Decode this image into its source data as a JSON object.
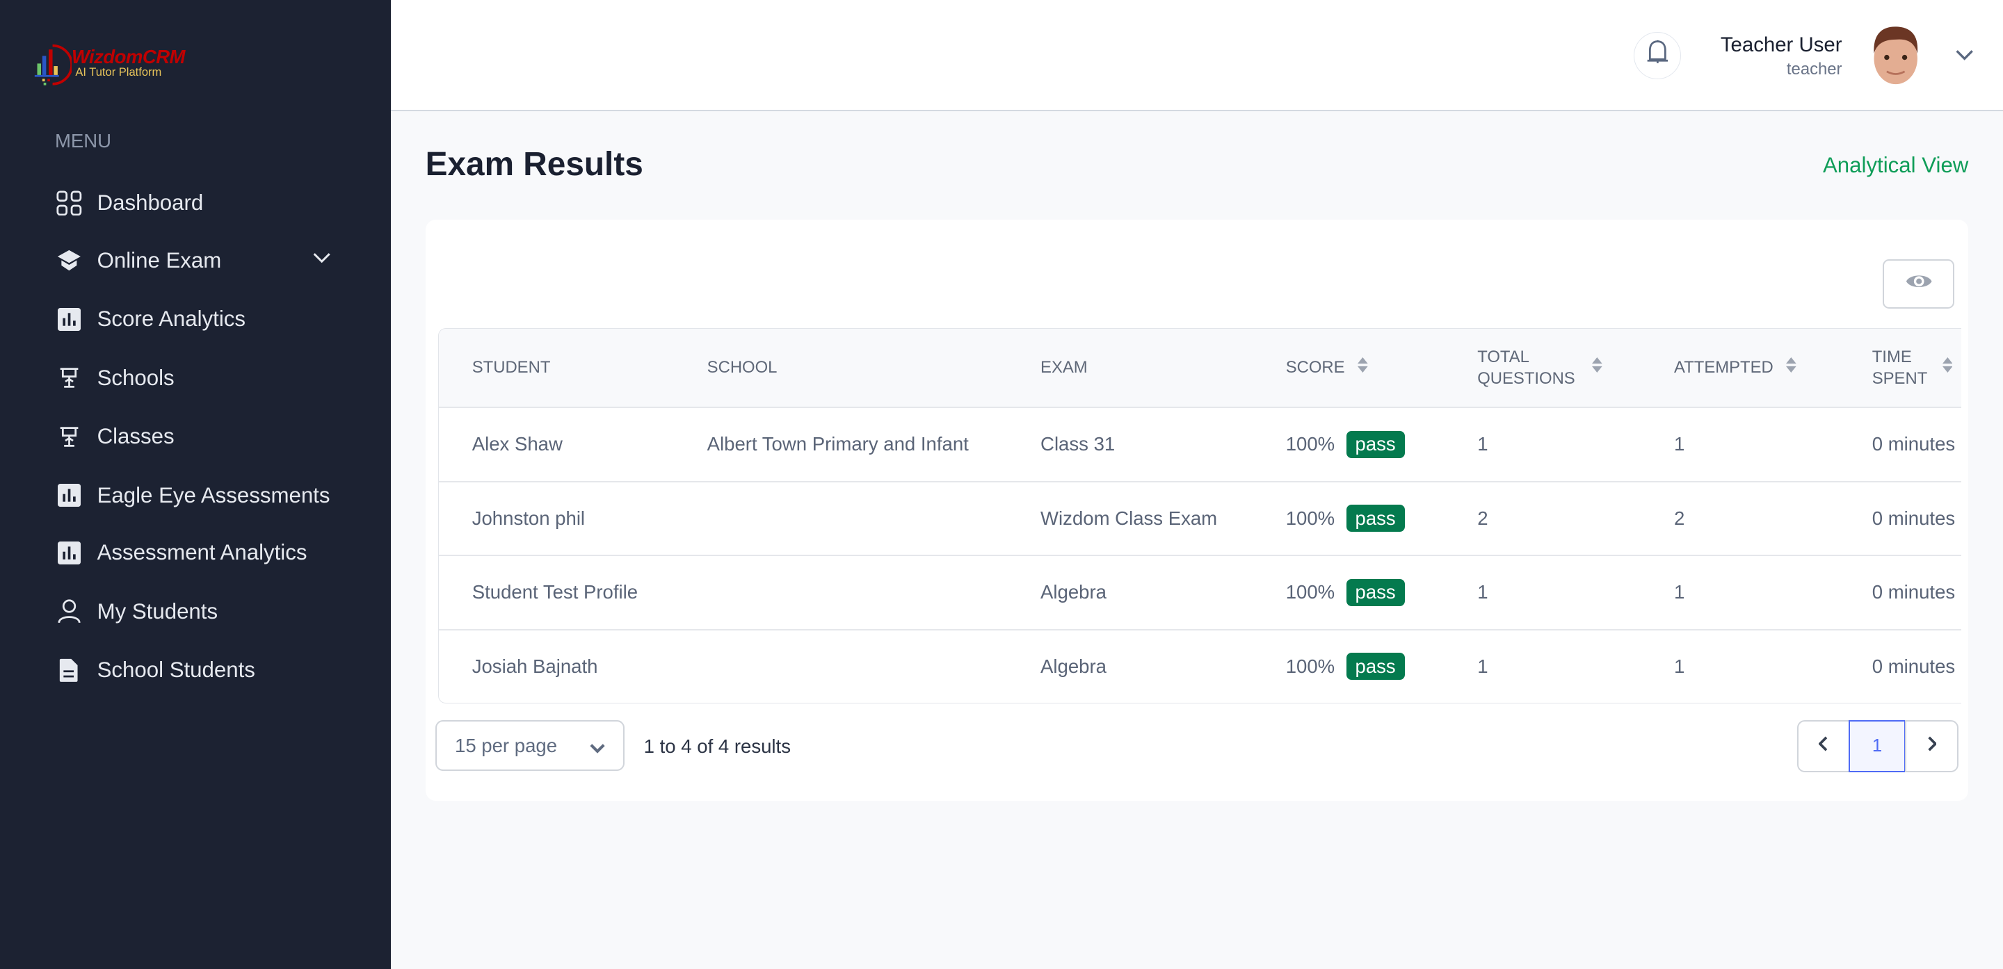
{
  "brand": {
    "name": "WizdomCRM",
    "tagline": "AI Tutor Platform"
  },
  "sidebar": {
    "menu_label": "MENU",
    "items": [
      {
        "label": "Dashboard",
        "icon": "grid-icon"
      },
      {
        "label": "Online Exam",
        "icon": "graduation-cap-icon",
        "expandable": true
      },
      {
        "label": "Score Analytics",
        "icon": "bar-chart-icon"
      },
      {
        "label": "Schools",
        "icon": "school-icon"
      },
      {
        "label": "Classes",
        "icon": "school-icon"
      },
      {
        "label": "Eagle Eye Assessments",
        "icon": "bar-chart-icon"
      },
      {
        "label": "Assessment Analytics",
        "icon": "bar-chart-icon"
      },
      {
        "label": "My Students",
        "icon": "user-icon"
      },
      {
        "label": "School Students",
        "icon": "document-icon"
      }
    ]
  },
  "header": {
    "user_name": "Teacher User",
    "user_role": "teacher"
  },
  "page": {
    "title": "Exam Results",
    "analytical_link": "Analytical View"
  },
  "table": {
    "columns": [
      {
        "label": "Student",
        "sortable": false
      },
      {
        "label": "School",
        "sortable": false
      },
      {
        "label": "Exam",
        "sortable": false
      },
      {
        "label": "Score",
        "sortable": true
      },
      {
        "label": "Total Questions",
        "sortable": true
      },
      {
        "label": "Attempted",
        "sortable": true
      },
      {
        "label": "Time Spent",
        "sortable": true
      }
    ],
    "rows": [
      {
        "student": "Alex Shaw",
        "school": "Albert Town Primary and Infant",
        "exam": "Class 31",
        "score": "100%",
        "status": "pass",
        "total": "1",
        "attempted": "1",
        "time": "0 minutes"
      },
      {
        "student": "Johnston phil",
        "school": "",
        "exam": "Wizdom Class Exam",
        "score": "100%",
        "status": "pass",
        "total": "2",
        "attempted": "2",
        "time": "0 minutes"
      },
      {
        "student": "Student Test Profile",
        "school": "",
        "exam": "Algebra",
        "score": "100%",
        "status": "pass",
        "total": "1",
        "attempted": "1",
        "time": "0 minutes"
      },
      {
        "student": "Josiah Bajnath",
        "school": "",
        "exam": "Algebra",
        "score": "100%",
        "status": "pass",
        "total": "1",
        "attempted": "1",
        "time": "0 minutes"
      }
    ]
  },
  "pagination": {
    "per_page": "15 per page",
    "summary": "1 to 4 of 4 results",
    "current_page": "1"
  },
  "colors": {
    "sidebar": "#1c2232",
    "accent_green": "#0f9d58",
    "pass_badge": "#047a4e",
    "active_page": "#4f6bf5"
  }
}
